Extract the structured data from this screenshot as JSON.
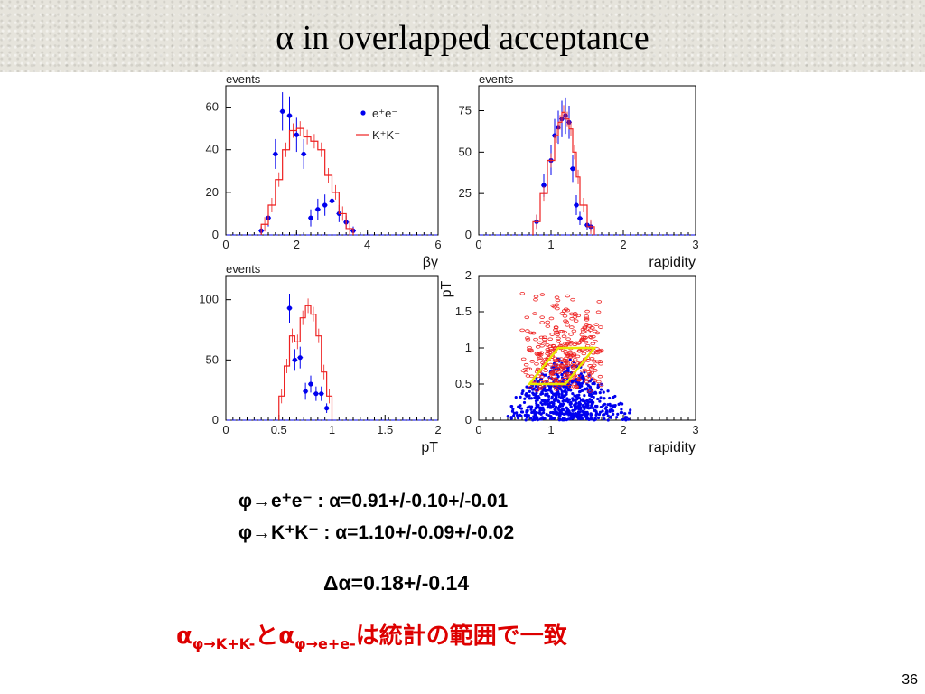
{
  "slide": {
    "title": "α in overlapped acceptance",
    "page_number": "36"
  },
  "results": {
    "ee_label": "φ→e⁺e⁻",
    "ee_value": " : α=0.91+/-0.10+/-0.01",
    "kk_label": "φ→K⁺K⁻",
    "kk_value": " : α=1.10+/-0.09+/-0.02",
    "delta": "Δα=0.18+/-0.14",
    "conclusion_main": "α",
    "conclusion_sub1": "φ→K+K-",
    "conclusion_mid": "とα",
    "conclusion_sub2": "φ→e+e-",
    "conclusion_tail": "は統計の範囲で一致"
  },
  "colors": {
    "ee": "#0000ee",
    "kk": "#ee2020",
    "cut_box": "#e8e800",
    "conclusion": "#dd0000"
  },
  "chart_data": [
    {
      "id": "beta-gamma",
      "type": "histogram-with-points",
      "ylabel": "events",
      "xlabel": "βγ",
      "xlim": [
        0,
        6
      ],
      "ylim": [
        0,
        70
      ],
      "xticks": [
        0,
        2,
        4,
        6
      ],
      "yticks": [
        0,
        20,
        40,
        60
      ],
      "legend": {
        "position": "top-right",
        "entries": [
          "e⁺e⁻",
          "K⁺K⁻"
        ]
      },
      "series": [
        {
          "name": "e⁺e⁻",
          "style": "points",
          "x": [
            1.0,
            1.2,
            1.4,
            1.6,
            1.8,
            2.0,
            2.2,
            2.4,
            2.6,
            2.8,
            3.0,
            3.2,
            3.4,
            3.6
          ],
          "y": [
            2,
            8,
            38,
            58,
            56,
            47,
            38,
            8,
            12,
            14,
            16,
            10,
            6,
            2
          ],
          "err": [
            2,
            4,
            7,
            9,
            9,
            8,
            7,
            4,
            5,
            5,
            5,
            4,
            3,
            2
          ]
        },
        {
          "name": "K⁺K⁻",
          "style": "histogram",
          "edges": [
            1.0,
            1.2,
            1.4,
            1.6,
            1.8,
            2.0,
            2.2,
            2.4,
            2.6,
            2.8,
            3.0,
            3.2,
            3.4,
            3.6
          ],
          "values": [
            5,
            14,
            26,
            40,
            49,
            50,
            46,
            44,
            40,
            28,
            20,
            10,
            3
          ]
        }
      ]
    },
    {
      "id": "rapidity",
      "type": "histogram-with-points",
      "ylabel": "events",
      "xlabel": "rapidity",
      "xlim": [
        0,
        3
      ],
      "ylim": [
        0,
        90
      ],
      "xticks": [
        0,
        1,
        2,
        3
      ],
      "yticks": [
        0,
        25,
        50,
        75
      ],
      "series": [
        {
          "name": "e⁺e⁻",
          "style": "points",
          "x": [
            0.8,
            0.9,
            1.0,
            1.05,
            1.1,
            1.15,
            1.2,
            1.25,
            1.3,
            1.35,
            1.4,
            1.5,
            1.55
          ],
          "y": [
            8,
            30,
            45,
            60,
            65,
            70,
            72,
            68,
            40,
            18,
            10,
            6,
            5
          ],
          "err": [
            4,
            7,
            9,
            10,
            10,
            11,
            11,
            10,
            8,
            6,
            4,
            3,
            3
          ]
        },
        {
          "name": "K⁺K⁻",
          "style": "histogram",
          "edges": [
            0.75,
            0.85,
            0.95,
            1.05,
            1.1,
            1.15,
            1.2,
            1.25,
            1.3,
            1.35,
            1.4,
            1.5,
            1.6
          ],
          "values": [
            8,
            25,
            45,
            60,
            68,
            74,
            70,
            64,
            50,
            35,
            18,
            5
          ]
        }
      ]
    },
    {
      "id": "pt",
      "type": "histogram-with-points",
      "ylabel": "events",
      "xlabel": "pT",
      "xlim": [
        0,
        2
      ],
      "ylim": [
        0,
        120
      ],
      "xticks": [
        0,
        0.5,
        1,
        1.5,
        2
      ],
      "yticks": [
        0,
        50,
        100
      ],
      "series": [
        {
          "name": "e⁺e⁻",
          "style": "points",
          "x": [
            0.6,
            0.65,
            0.7,
            0.75,
            0.8,
            0.85,
            0.9,
            0.95
          ],
          "y": [
            93,
            50,
            52,
            24,
            30,
            22,
            22,
            10
          ],
          "err": [
            12,
            9,
            9,
            7,
            7,
            6,
            6,
            4
          ]
        },
        {
          "name": "K⁺K⁻",
          "style": "histogram",
          "edges": [
            0.5,
            0.55,
            0.6,
            0.65,
            0.7,
            0.75,
            0.8,
            0.85,
            0.9,
            0.95,
            1.0
          ],
          "values": [
            20,
            45,
            70,
            65,
            85,
            95,
            88,
            70,
            40,
            20
          ]
        }
      ]
    },
    {
      "id": "pt-vs-rapidity",
      "type": "scatter",
      "ylabel": "pT",
      "xlabel": "rapidity",
      "xlim": [
        0,
        3
      ],
      "ylim": [
        0,
        2
      ],
      "xticks": [
        0,
        1,
        2,
        3
      ],
      "yticks": [
        0,
        0.5,
        1,
        1.5,
        2
      ],
      "series": [
        {
          "name": "e⁺e⁻",
          "style": "dots",
          "center": [
            1.2,
            0.3
          ],
          "spread": [
            0.5,
            0.35
          ]
        },
        {
          "name": "K⁺K⁻",
          "style": "open-markers",
          "center": [
            1.2,
            0.9
          ],
          "spread": [
            0.3,
            0.35
          ]
        }
      ],
      "cut_region": [
        [
          0.7,
          0.5
        ],
        [
          1.2,
          0.5
        ],
        [
          1.6,
          1.0
        ],
        [
          1.1,
          1.0
        ]
      ]
    }
  ]
}
